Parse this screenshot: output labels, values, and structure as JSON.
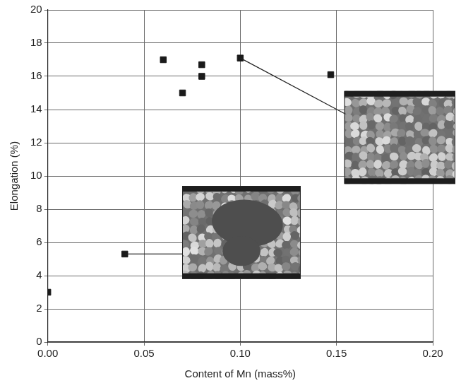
{
  "chart_data": {
    "type": "scatter",
    "xlabel": "Content of Mn (mass%)",
    "ylabel": "Elongation (%)",
    "x": [
      0.0,
      0.04,
      0.06,
      0.07,
      0.08,
      0.08,
      0.1,
      0.147
    ],
    "values": [
      3.0,
      5.3,
      17.0,
      15.0,
      16.0,
      16.7,
      17.1,
      16.1
    ],
    "color": "#1a1a1a",
    "marker": "square",
    "xlim": [
      0,
      0.2
    ],
    "xticks": [
      {
        "value": 0,
        "label": "0.00"
      },
      {
        "value": 0.05,
        "label": "0.05"
      },
      {
        "value": 0.1,
        "label": "0.10"
      },
      {
        "value": 0.15,
        "label": "0.15"
      },
      {
        "value": 0.2,
        "label": "0.20"
      }
    ],
    "ylim": [
      0,
      20
    ],
    "yticks": [
      0,
      2,
      4,
      6,
      8,
      10,
      12,
      14,
      16,
      18,
      20
    ],
    "grid": true
  }
}
